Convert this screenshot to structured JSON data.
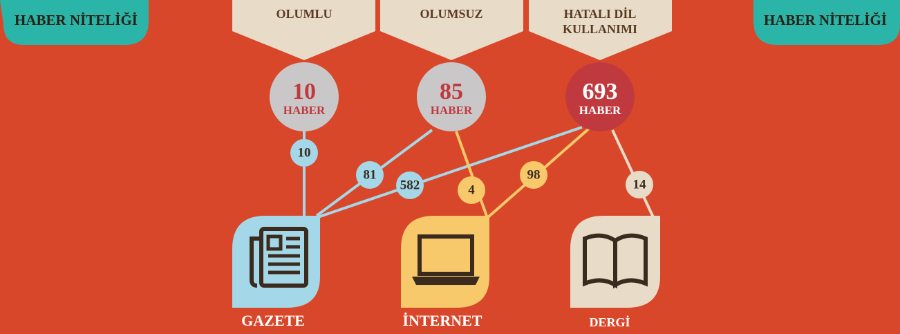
{
  "header": {
    "left": "HABER NİTELİĞİ",
    "right": "HABER NİTELİĞİ"
  },
  "categories": [
    {
      "label_lines": [
        "OLUMLU"
      ],
      "count": 10,
      "unit": "HABER"
    },
    {
      "label_lines": [
        "OLUMSUZ"
      ],
      "count": 85,
      "unit": "HABER"
    },
    {
      "label_lines": [
        "HATALI DİL",
        "KULLANIMI"
      ],
      "count": 693,
      "unit": "HABER"
    }
  ],
  "links": [
    10,
    81,
    582,
    4,
    98,
    14
  ],
  "media": [
    "GAZETE",
    "İNTERNET",
    "DERGİ"
  ]
}
